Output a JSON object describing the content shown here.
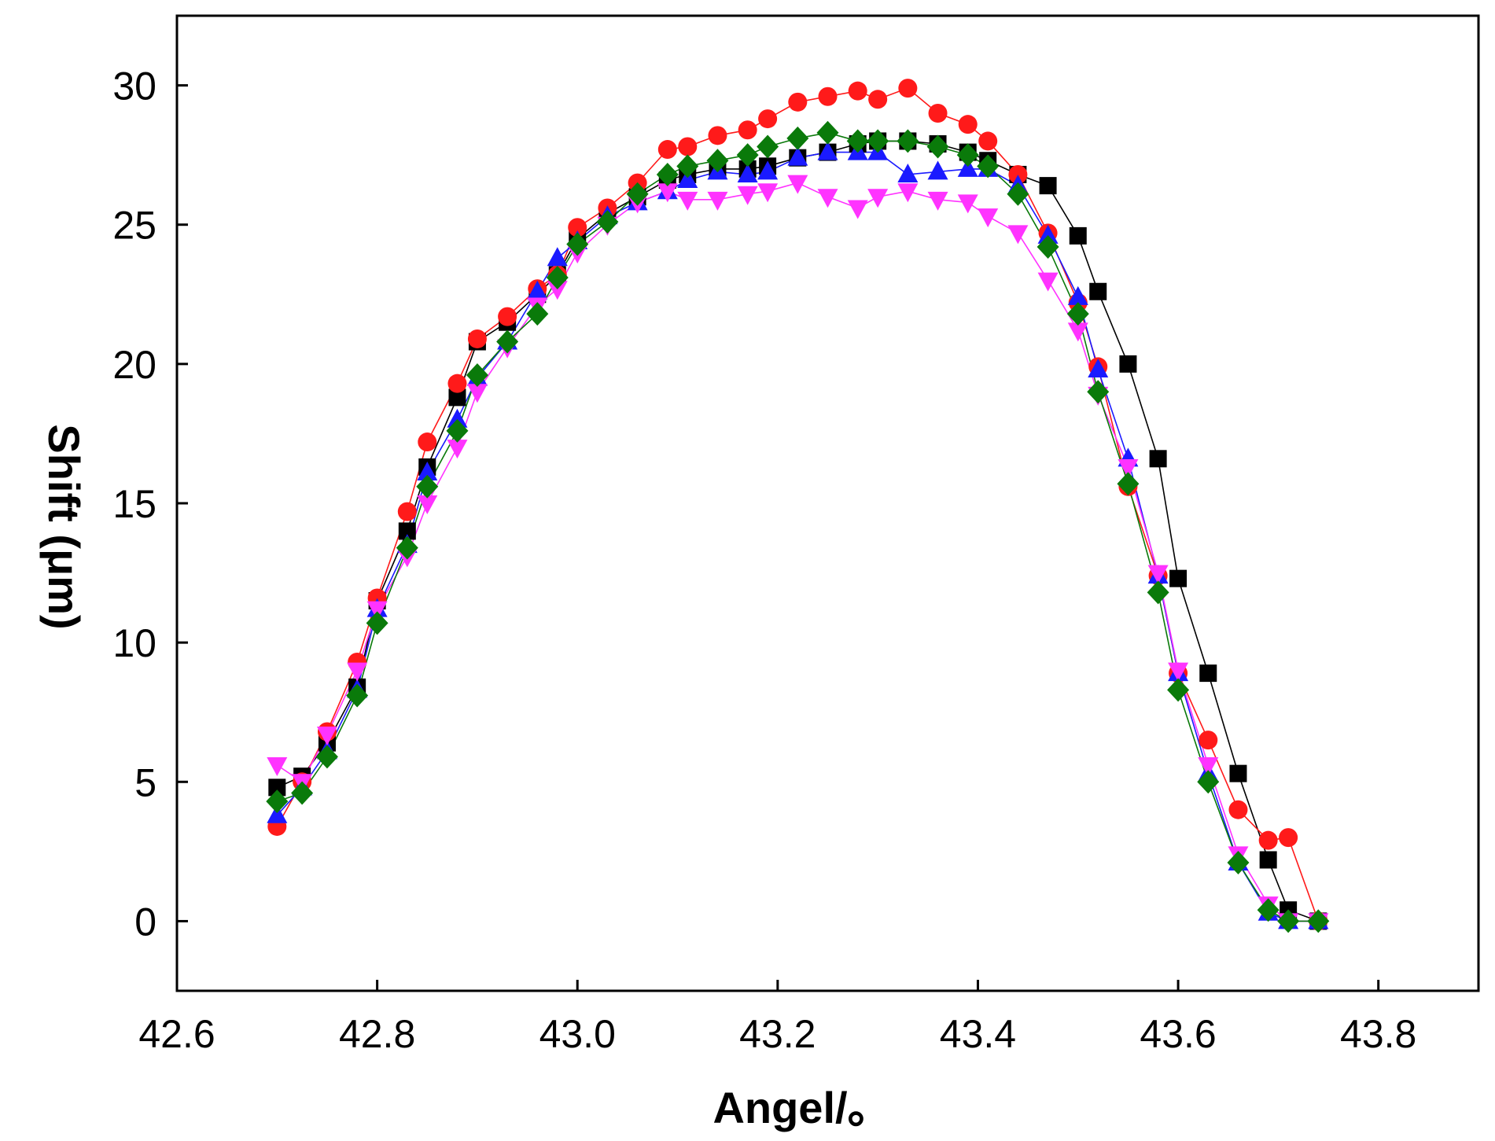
{
  "chart_data": {
    "type": "scatter",
    "title": "",
    "xlabel": "Angel/。",
    "ylabel": "Shift (μm)",
    "xlim": [
      42.6,
      43.9
    ],
    "ylim": [
      -2.5,
      32.5
    ],
    "xticks": [
      42.6,
      42.8,
      43.0,
      43.2,
      43.4,
      43.6,
      43.8
    ],
    "xtick_labels": [
      "42.6",
      "42.8",
      "43.0",
      "43.2",
      "43.4",
      "43.6",
      "43.8"
    ],
    "yticks": [
      0,
      5,
      10,
      15,
      20,
      25,
      30
    ],
    "ytick_labels": [
      "0",
      "5",
      "10",
      "15",
      "20",
      "25",
      "30"
    ],
    "grid": false,
    "legend": "none",
    "x": [
      42.7,
      42.725,
      42.75,
      42.78,
      42.8,
      42.83,
      42.85,
      42.88,
      42.9,
      42.93,
      42.96,
      42.98,
      43.0,
      43.03,
      43.06,
      43.09,
      43.11,
      43.14,
      43.17,
      43.19,
      43.22,
      43.25,
      43.28,
      43.3,
      43.33,
      43.36,
      43.39,
      43.41,
      43.44,
      43.47,
      43.5,
      43.52,
      43.55,
      43.58,
      43.6,
      43.63,
      43.66,
      43.69,
      43.71,
      43.74
    ],
    "series": [
      {
        "name": "black squares",
        "color": "#000000",
        "marker": "square",
        "values": [
          4.8,
          5.2,
          6.4,
          8.4,
          11.5,
          14.0,
          16.3,
          18.8,
          20.8,
          21.5,
          22.5,
          23.2,
          24.5,
          25.4,
          26.0,
          26.6,
          26.8,
          27.0,
          27.0,
          27.1,
          27.4,
          27.6,
          27.9,
          28.0,
          28.0,
          27.9,
          27.6,
          27.3,
          26.8,
          26.4,
          24.6,
          22.6,
          20.0,
          16.6,
          12.3,
          8.9,
          5.3,
          2.2,
          0.4,
          0.0
        ]
      },
      {
        "name": "red circles",
        "color": "#ff1a1a",
        "marker": "circle",
        "values": [
          3.4,
          5.0,
          6.8,
          9.3,
          11.6,
          14.7,
          17.2,
          19.3,
          20.9,
          21.7,
          22.7,
          23.2,
          24.9,
          25.6,
          26.5,
          27.7,
          27.8,
          28.2,
          28.4,
          28.8,
          29.4,
          29.6,
          29.8,
          29.5,
          29.9,
          29.0,
          28.6,
          28.0,
          26.8,
          24.7,
          22.2,
          19.9,
          15.6,
          12.4,
          8.9,
          6.5,
          4.0,
          2.9,
          3.0,
          0.0
        ]
      },
      {
        "name": "blue triangles",
        "color": "#1a1aff",
        "marker": "triangle-up",
        "values": [
          3.8,
          4.8,
          6.1,
          8.3,
          11.2,
          13.5,
          16.1,
          18.0,
          19.5,
          20.8,
          22.6,
          23.8,
          24.4,
          25.3,
          25.8,
          26.2,
          26.6,
          26.9,
          26.8,
          26.9,
          27.4,
          27.6,
          27.6,
          27.6,
          26.8,
          26.9,
          27.0,
          27.0,
          26.4,
          24.6,
          22.4,
          19.8,
          16.6,
          12.4,
          8.9,
          5.3,
          2.1,
          0.3,
          0.0,
          0.0
        ]
      },
      {
        "name": "magenta inverted triangles",
        "color": "#ff33ff",
        "marker": "triangle-down",
        "values": [
          5.6,
          5.0,
          6.7,
          9.0,
          11.2,
          13.1,
          15.0,
          17.0,
          19.0,
          20.6,
          22.1,
          22.7,
          24.0,
          25.0,
          25.8,
          26.2,
          25.9,
          25.9,
          26.1,
          26.2,
          26.5,
          26.0,
          25.6,
          26.0,
          26.2,
          25.9,
          25.8,
          25.3,
          24.7,
          23.0,
          21.2,
          18.9,
          16.3,
          12.5,
          9.0,
          5.6,
          2.4,
          0.6,
          0.0,
          0.0
        ]
      },
      {
        "name": "green diamonds",
        "color": "#0a7a0a",
        "marker": "diamond",
        "values": [
          4.3,
          4.6,
          5.9,
          8.1,
          10.7,
          13.4,
          15.6,
          17.6,
          19.6,
          20.8,
          21.8,
          23.1,
          24.3,
          25.1,
          26.1,
          26.8,
          27.1,
          27.3,
          27.5,
          27.8,
          28.1,
          28.3,
          28.0,
          28.0,
          28.0,
          27.8,
          27.5,
          27.1,
          26.1,
          24.2,
          21.8,
          19.0,
          15.7,
          11.8,
          8.3,
          5.0,
          2.1,
          0.4,
          0.0,
          0.0
        ]
      }
    ]
  }
}
